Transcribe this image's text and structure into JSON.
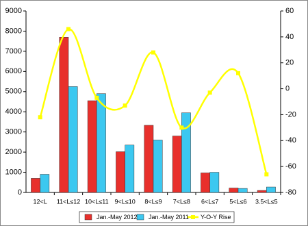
{
  "chart_data": {
    "type": "bar-line",
    "categories": [
      "12<L",
      "11<L≤12",
      "10<L≤11",
      "9<L≤10",
      "8<L≤9",
      "7<L≤8",
      "6<L≤7",
      "5<L≤6",
      "3.5<L≤5"
    ],
    "series": [
      {
        "name": "Jan.-May 2012",
        "color": "#e8302c",
        "values": [
          700,
          7700,
          4550,
          2020,
          3330,
          2800,
          970,
          220,
          100
        ]
      },
      {
        "name": "Jan.-May 2011",
        "color": "#3cc8f0",
        "values": [
          900,
          5250,
          4900,
          2350,
          2600,
          3950,
          1000,
          200,
          270
        ]
      },
      {
        "name": "Y-O-Y Rise",
        "color": "#ffff00",
        "axis": "y2",
        "type": "line",
        "values": [
          -22,
          46,
          -7,
          -13,
          28,
          -30,
          -3,
          12,
          -66
        ]
      }
    ],
    "ylim": [
      0,
      9000
    ],
    "yticks": [
      0,
      1000,
      2000,
      3000,
      4000,
      5000,
      6000,
      7000,
      8000,
      9000
    ],
    "y2lim": [
      -80,
      60
    ],
    "y2ticks": [
      -80,
      -60,
      -40,
      -20,
      0,
      20,
      40,
      60
    ],
    "legend": "bottom"
  }
}
